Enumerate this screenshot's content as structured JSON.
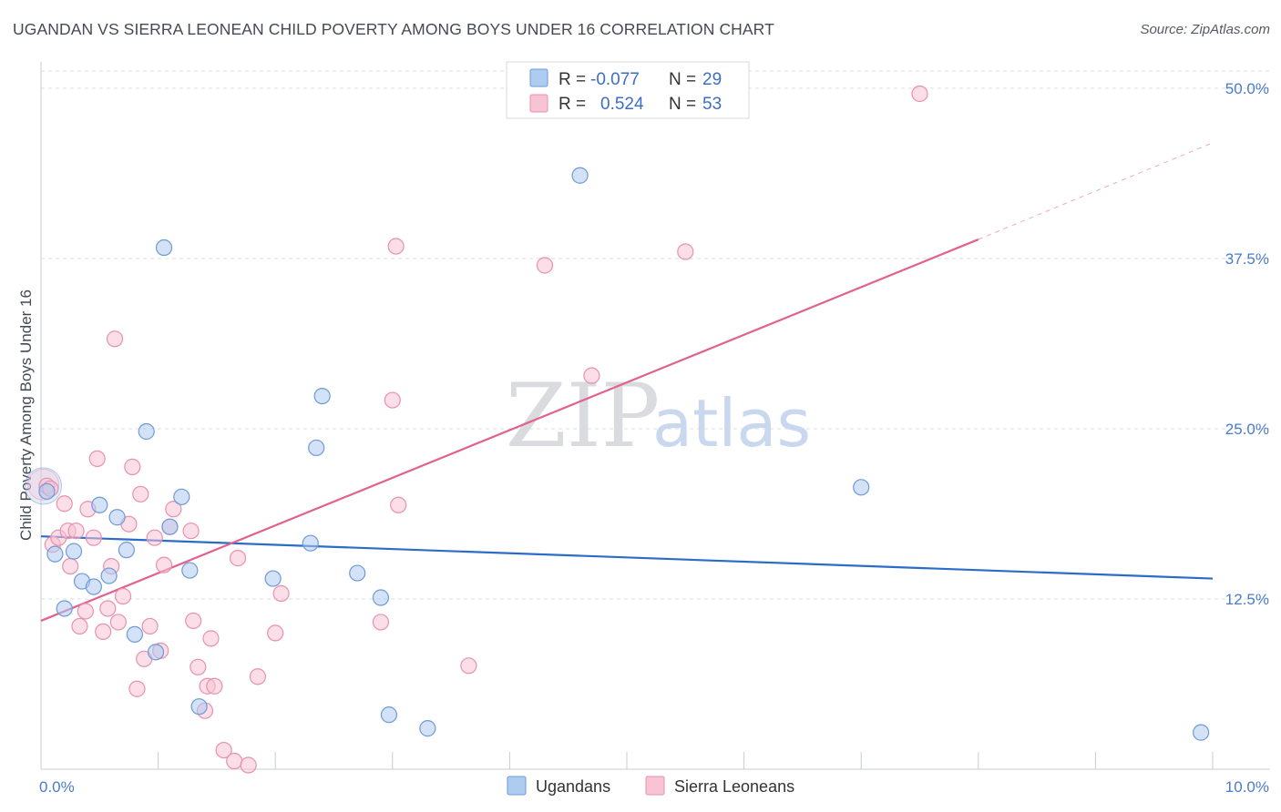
{
  "header": {
    "title": "UGANDAN VS SIERRA LEONEAN CHILD POVERTY AMONG BOYS UNDER 16 CORRELATION CHART",
    "source": "Source: ZipAtlas.com"
  },
  "watermark": {
    "zip": "ZIP",
    "atlas": "atlas"
  },
  "colors": {
    "blue_fill": "#aecbf0",
    "blue_stroke": "#6f9ad6",
    "blue_line": "#2b6cc9",
    "pink_fill": "#f8c3d3",
    "pink_stroke": "#e891ad",
    "pink_line": "#e0628d",
    "grid": "#d9dce1",
    "tick_text": "#4a7cc9"
  },
  "legend": {
    "rows": [
      {
        "r_label": "R = ",
        "r_value": "-0.077",
        "n_label": "N = ",
        "n_value": "29"
      },
      {
        "r_label": "R = ",
        "r_value": "0.524",
        "n_label": "N = ",
        "n_value": "53"
      }
    ]
  },
  "chart_data": {
    "type": "scatter",
    "title": "UGANDAN VS SIERRA LEONEAN CHILD POVERTY AMONG BOYS UNDER 16 CORRELATION CHART",
    "xlabel": "",
    "ylabel": "Child Poverty Among Boys Under 16",
    "xlim": [
      0,
      10
    ],
    "ylim": [
      0,
      50
    ],
    "x_tick_labels": [
      "0.0%",
      "10.0%"
    ],
    "y_ticks": [
      12.5,
      25.0,
      37.5,
      50.0
    ],
    "y_tick_labels": [
      "12.5%",
      "25.0%",
      "37.5%",
      "50.0%"
    ],
    "legend_position": "top-center",
    "grid": true,
    "series": [
      {
        "name": "Ugandans",
        "points": [
          [
            0.05,
            20.4
          ],
          [
            0.12,
            15.8
          ],
          [
            0.2,
            11.8
          ],
          [
            0.28,
            16.0
          ],
          [
            0.35,
            13.8
          ],
          [
            0.45,
            13.4
          ],
          [
            0.5,
            19.4
          ],
          [
            0.58,
            14.2
          ],
          [
            0.65,
            18.5
          ],
          [
            0.73,
            16.1
          ],
          [
            0.8,
            9.9
          ],
          [
            0.9,
            24.8
          ],
          [
            0.98,
            8.6
          ],
          [
            1.05,
            38.3
          ],
          [
            1.1,
            17.8
          ],
          [
            1.2,
            20.0
          ],
          [
            1.27,
            14.6
          ],
          [
            1.35,
            4.6
          ],
          [
            1.98,
            14.0
          ],
          [
            2.3,
            16.6
          ],
          [
            2.35,
            23.6
          ],
          [
            2.4,
            27.4
          ],
          [
            2.7,
            14.4
          ],
          [
            2.9,
            12.6
          ],
          [
            2.97,
            4.0
          ],
          [
            3.3,
            3.0
          ],
          [
            4.6,
            43.6
          ],
          [
            7.0,
            20.7
          ],
          [
            9.9,
            2.7
          ]
        ],
        "trend": {
          "x": [
            0,
            10
          ],
          "y": [
            17.1,
            14.0
          ]
        }
      },
      {
        "name": "Sierra Leoneans",
        "points": [
          [
            0.05,
            20.8
          ],
          [
            0.1,
            16.5
          ],
          [
            0.15,
            17.0
          ],
          [
            0.2,
            19.5
          ],
          [
            0.23,
            17.5
          ],
          [
            0.25,
            14.9
          ],
          [
            0.3,
            17.5
          ],
          [
            0.33,
            10.5
          ],
          [
            0.38,
            11.6
          ],
          [
            0.4,
            19.1
          ],
          [
            0.45,
            17.0
          ],
          [
            0.48,
            22.8
          ],
          [
            0.53,
            10.1
          ],
          [
            0.57,
            11.8
          ],
          [
            0.6,
            14.9
          ],
          [
            0.63,
            31.6
          ],
          [
            0.66,
            10.8
          ],
          [
            0.7,
            12.7
          ],
          [
            0.75,
            18.0
          ],
          [
            0.78,
            22.2
          ],
          [
            0.82,
            5.9
          ],
          [
            0.85,
            20.2
          ],
          [
            0.88,
            8.1
          ],
          [
            0.93,
            10.5
          ],
          [
            0.97,
            17.0
          ],
          [
            1.02,
            8.7
          ],
          [
            1.05,
            15.0
          ],
          [
            1.1,
            17.8
          ],
          [
            1.13,
            19.1
          ],
          [
            1.28,
            17.5
          ],
          [
            1.3,
            10.9
          ],
          [
            1.34,
            7.5
          ],
          [
            1.4,
            4.3
          ],
          [
            1.42,
            6.1
          ],
          [
            1.45,
            9.6
          ],
          [
            1.48,
            6.1
          ],
          [
            1.56,
            1.4
          ],
          [
            1.65,
            0.6
          ],
          [
            1.68,
            15.5
          ],
          [
            1.77,
            0.3
          ],
          [
            1.85,
            6.8
          ],
          [
            2.0,
            10.0
          ],
          [
            2.05,
            12.9
          ],
          [
            3.0,
            27.1
          ],
          [
            3.03,
            38.4
          ],
          [
            3.05,
            19.4
          ],
          [
            2.9,
            10.8
          ],
          [
            3.65,
            7.6
          ],
          [
            4.3,
            37.0
          ],
          [
            4.7,
            28.9
          ],
          [
            5.5,
            38.0
          ],
          [
            7.5,
            49.6
          ],
          [
            0.08,
            20.6
          ]
        ],
        "trend": {
          "x": [
            0,
            8.0
          ],
          "y": [
            10.9,
            38.9
          ]
        },
        "trend_dashed_extension": {
          "x": [
            8.0,
            10.0
          ],
          "y": [
            38.9,
            46.0
          ]
        }
      }
    ]
  },
  "bottom_legend": {
    "items": [
      "Ugandans",
      "Sierra Leoneans"
    ]
  }
}
